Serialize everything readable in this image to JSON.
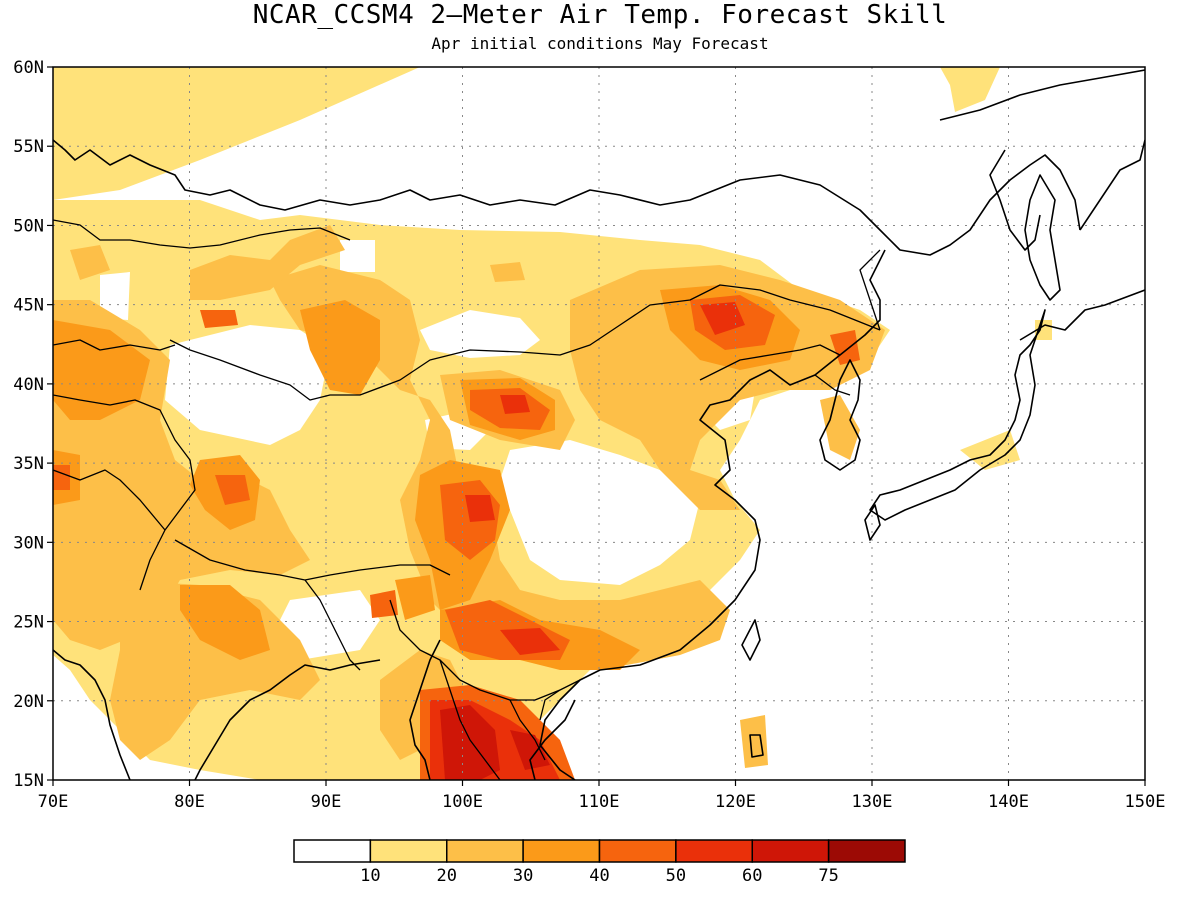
{
  "title": "NCAR_CCSM4 2–Meter Air Temp. Forecast Skill",
  "subtitle": "Apr initial conditions  May Forecast",
  "map": {
    "lon_range": [
      70,
      150
    ],
    "lat_range": [
      15,
      60
    ],
    "lon_ticks": [
      "70E",
      "80E",
      "90E",
      "100E",
      "110E",
      "120E",
      "130E",
      "140E",
      "150E"
    ],
    "lat_ticks": [
      "15N",
      "20N",
      "25N",
      "30N",
      "35N",
      "40N",
      "45N",
      "50N",
      "55N",
      "60N"
    ],
    "gridlines": true,
    "variable": "2-meter air temperature forecast skill"
  },
  "colorbar": {
    "bins": [
      {
        "color": "#ffffff"
      },
      {
        "color": "#ffe27a"
      },
      {
        "color": "#fdbf48"
      },
      {
        "color": "#fb9a19"
      },
      {
        "color": "#f6640e"
      },
      {
        "color": "#ea300a"
      },
      {
        "color": "#cf1607"
      },
      {
        "color": "#9c0a05"
      }
    ],
    "labels": [
      "10",
      "20",
      "30",
      "40",
      "50",
      "60",
      "75"
    ]
  }
}
